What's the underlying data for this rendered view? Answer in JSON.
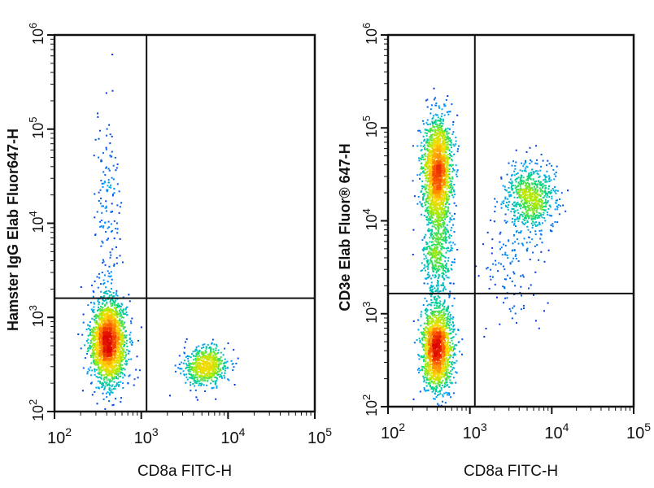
{
  "figure": {
    "description_panels": 2
  },
  "chart_data": [
    {
      "type": "scatter",
      "xlabel": "CD8a FITC-H",
      "ylabel": "Hamster IgG Elab Fluor647-H",
      "xlim": [
        100,
        100000
      ],
      "ylim": [
        100,
        1000000
      ],
      "scale": "log",
      "gate": {
        "x": 1150,
        "y": 1600
      },
      "x_ticks": [
        {
          "base": "10",
          "exp": "2"
        },
        {
          "base": "10",
          "exp": "3"
        },
        {
          "base": "10",
          "exp": "4"
        },
        {
          "base": "10",
          "exp": "5"
        }
      ],
      "y_ticks": [
        {
          "base": "10",
          "exp": "2"
        },
        {
          "base": "10",
          "exp": "3"
        },
        {
          "base": "10",
          "exp": "4"
        },
        {
          "base": "10",
          "exp": "5"
        },
        {
          "base": "10",
          "exp": "6"
        }
      ],
      "populations": [
        {
          "name": "",
          "cx": 420,
          "cy": 550,
          "sx": 0.1,
          "sy": 0.22,
          "n": 2200
        },
        {
          "name": "",
          "cx": 5500,
          "cy": 300,
          "sx": 0.13,
          "sy": 0.1,
          "n": 650
        },
        {
          "name": "",
          "cx": 400,
          "cy": 15000,
          "sx": 0.08,
          "sy": 0.55,
          "n": 160
        }
      ]
    },
    {
      "type": "scatter",
      "xlabel": "CD8a FITC-H",
      "ylabel": "CD3e Elab Fluor® 647-H",
      "xlim": [
        100,
        100000
      ],
      "ylim": [
        100,
        1000000
      ],
      "scale": "log",
      "gate": {
        "x": 1150,
        "y": 1650
      },
      "x_ticks": [
        {
          "base": "10",
          "exp": "2"
        },
        {
          "base": "10",
          "exp": "3"
        },
        {
          "base": "10",
          "exp": "4"
        },
        {
          "base": "10",
          "exp": "5"
        }
      ],
      "y_ticks": [
        {
          "base": "10",
          "exp": "2"
        },
        {
          "base": "10",
          "exp": "3"
        },
        {
          "base": "10",
          "exp": "4"
        },
        {
          "base": "10",
          "exp": "5"
        },
        {
          "base": "10",
          "exp": "6"
        }
      ],
      "populations": [
        {
          "name": "",
          "cx": 400,
          "cy": 35000,
          "sx": 0.09,
          "sy": 0.28,
          "n": 1700
        },
        {
          "name": "",
          "cx": 400,
          "cy": 420,
          "sx": 0.09,
          "sy": 0.22,
          "n": 1700
        },
        {
          "name": "",
          "cx": 400,
          "cy": 5000,
          "sx": 0.09,
          "sy": 0.35,
          "n": 600
        },
        {
          "name": "",
          "cx": 5500,
          "cy": 18000,
          "sx": 0.15,
          "sy": 0.18,
          "n": 700
        },
        {
          "name": "",
          "cx": 3500,
          "cy": 4000,
          "sx": 0.2,
          "sy": 0.35,
          "n": 140
        }
      ]
    }
  ]
}
